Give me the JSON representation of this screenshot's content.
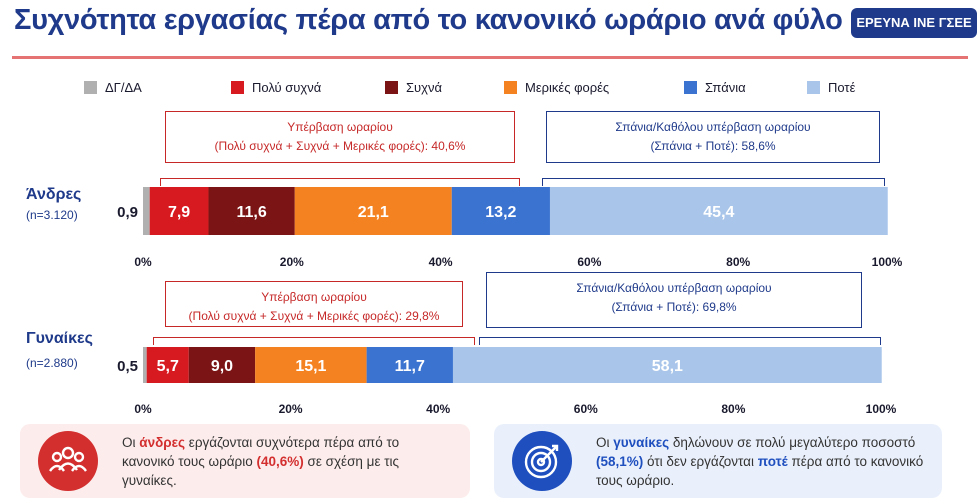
{
  "header": {
    "title": "Συχνότητα εργασίας πέρα από το κανονικό ωράριο ανά φύλο",
    "badge": "ΕΡΕΥΝΑ ΙΝΕ ΓΣΕΕ"
  },
  "legend": [
    {
      "label": "ΔΓ/ΔΑ",
      "color": "#b0b0b0"
    },
    {
      "label": "Πολύ συχνά",
      "color": "#d71920"
    },
    {
      "label": "Συχνά",
      "color": "#7b1414"
    },
    {
      "label": "Μερικές φορές",
      "color": "#f58220"
    },
    {
      "label": "Σπάνια",
      "color": "#3b73d1"
    },
    {
      "label": "Ποτέ",
      "color": "#a9c6ea"
    }
  ],
  "groups": {
    "men": {
      "label": "Άνδρες",
      "n": "(n=3.120)",
      "over": {
        "line1": "Υπέρβαση ωραρίου",
        "line2": "(Πολύ συχνά + Συχνά + Μερικές φορές): 40,6%"
      },
      "under": {
        "line1": "Σπάνια/Καθόλου υπέρβαση ωραρίου",
        "line2": "(Σπάνια + Ποτέ): 58,6%"
      }
    },
    "women": {
      "label": "Γυναίκες",
      "n": "(n=2.880)",
      "over": {
        "line1": "Υπέρβαση ωραρίου",
        "line2": "(Πολύ συχνά + Συχνά + Μερικές φορές): 29,8%"
      },
      "under": {
        "line1": "Σπάνια/Καθόλου υπέρβαση ωραρίου",
        "line2": "(Σπάνια + Ποτέ): 69,8%"
      }
    }
  },
  "callouts": {
    "left": {
      "pre": "Οι ",
      "highlight": "άνδρες",
      "mid": " εργάζονται συχνότερα πέρα από το κανονικό τους ωράριο ",
      "pct": "(40,6%)",
      "post": " σε σχέση με τις γυναίκες.",
      "icon": "people-group-icon"
    },
    "right": {
      "pre": "Οι ",
      "highlight": "γυναίκες",
      "mid": " δηλώνουν σε πολύ μεγαλύτερο ποσοστό ",
      "pct": "(58,1%)",
      "mid2": " ότι δεν εργάζονται ",
      "highlight2": "ποτέ",
      "post": " πέρα από το κανονικό τους ωράριο.",
      "icon": "target-icon"
    }
  },
  "chart_data": [
    {
      "type": "bar",
      "orientation": "horizontal-stacked",
      "category": "Άνδρες",
      "series": [
        {
          "name": "ΔΓ/ΔΑ",
          "value": 0.9,
          "label": "0,9"
        },
        {
          "name": "Πολύ συχνά",
          "value": 7.9,
          "label": "7,9"
        },
        {
          "name": "Συχνά",
          "value": 11.6,
          "label": "11,6"
        },
        {
          "name": "Μερικές φορές",
          "value": 21.1,
          "label": "21,1"
        },
        {
          "name": "Σπάνια",
          "value": 13.2,
          "label": "13,2"
        },
        {
          "name": "Ποτέ",
          "value": 45.4,
          "label": "45,4"
        }
      ],
      "xlim": [
        0,
        100
      ],
      "xticks": [
        "0%",
        "20%",
        "40%",
        "60%",
        "80%",
        "100%"
      ]
    },
    {
      "type": "bar",
      "orientation": "horizontal-stacked",
      "category": "Γυναίκες",
      "series": [
        {
          "name": "ΔΓ/ΔΑ",
          "value": 0.5,
          "label": "0,5"
        },
        {
          "name": "Πολύ συχνά",
          "value": 5.7,
          "label": "5,7"
        },
        {
          "name": "Συχνά",
          "value": 9.0,
          "label": "9,0"
        },
        {
          "name": "Μερικές φορές",
          "value": 15.1,
          "label": "15,1"
        },
        {
          "name": "Σπάνια",
          "value": 11.7,
          "label": "11,7"
        },
        {
          "name": "Ποτέ",
          "value": 58.1,
          "label": "58,1"
        }
      ],
      "xlim": [
        0,
        100
      ],
      "xticks": [
        "0%",
        "20%",
        "40%",
        "60%",
        "80%",
        "100%"
      ]
    }
  ]
}
